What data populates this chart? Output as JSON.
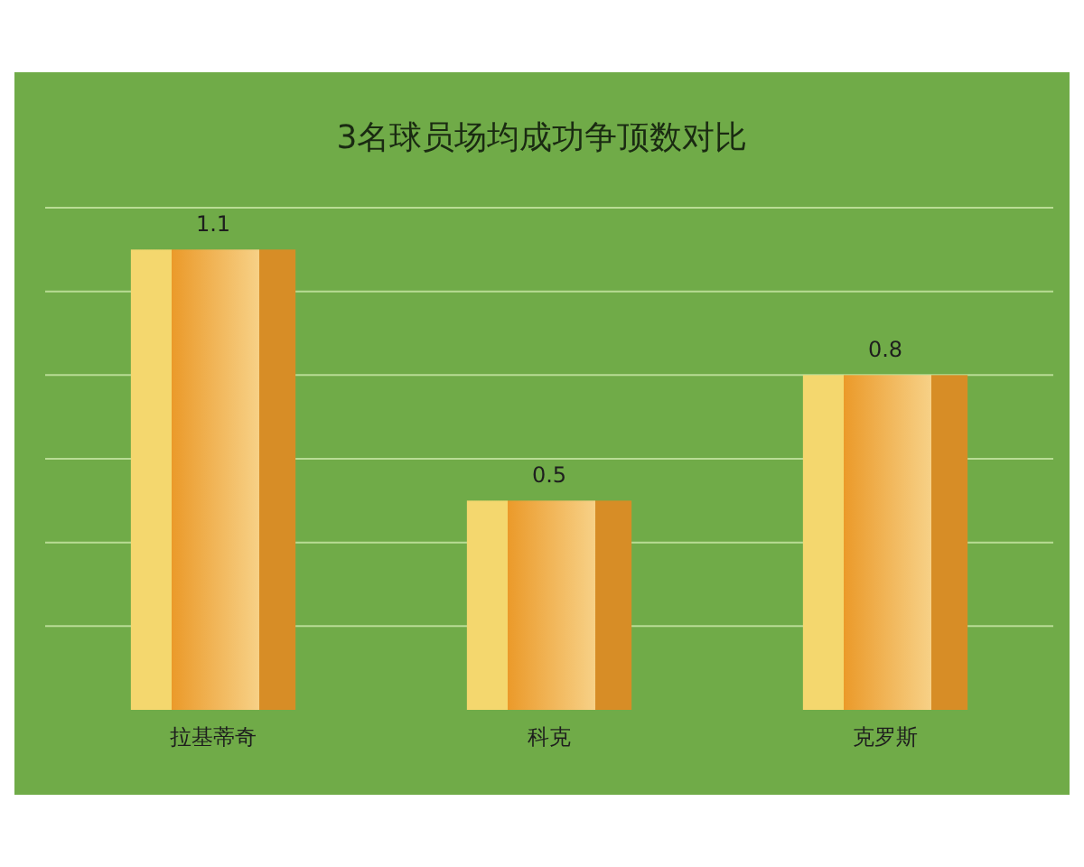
{
  "chart_data": {
    "type": "bar",
    "title": "3名球员场均成功争顶数对比",
    "categories": [
      "拉基蒂奇",
      "科克",
      "克罗斯"
    ],
    "values": [
      1.1,
      0.5,
      0.8
    ],
    "color": "#eb9a2a",
    "ylim": [
      0,
      1.2
    ],
    "yticks": [
      {
        "value": 0.2,
        "label": null
      },
      {
        "value": 0.4,
        "label": null
      },
      {
        "value": 0.6,
        "label": null
      },
      {
        "value": 0.8,
        "label": null
      },
      {
        "value": 1.0,
        "label": null
      },
      {
        "value": 1.2,
        "label": null
      }
    ],
    "grid": "y",
    "tick_labels": "x",
    "data_labels": true
  }
}
